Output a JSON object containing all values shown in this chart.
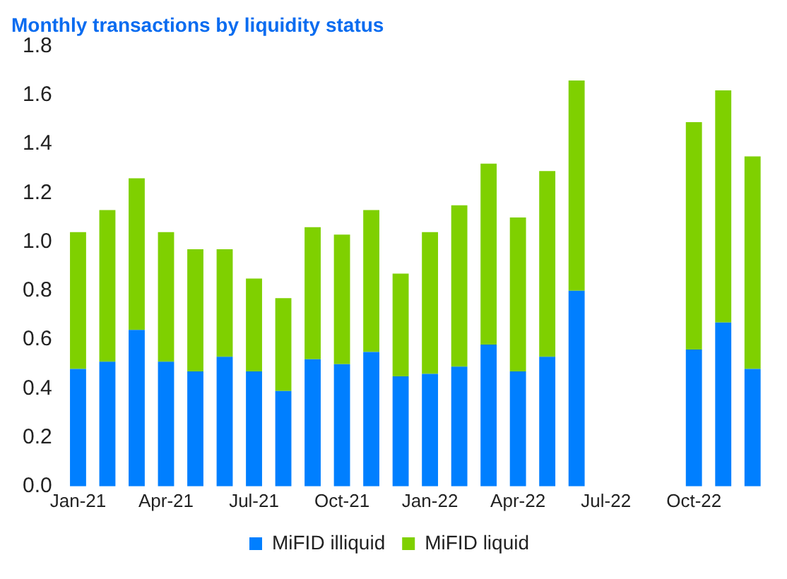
{
  "chart_data": {
    "type": "bar",
    "title": "Monthly transactions by liquidity status",
    "stacked": true,
    "categories": [
      "Jan-21",
      null,
      null,
      "Apr-21",
      null,
      null,
      "Jul-21",
      null,
      null,
      "Oct-21",
      null,
      null,
      "Jan-22",
      null,
      null,
      "Apr-22",
      null,
      null,
      "Jul-22",
      null,
      null,
      "Oct-22",
      null,
      null
    ],
    "series": [
      {
        "name": "MiFID illiquid",
        "color": "#007fff",
        "values": [
          0.48,
          0.51,
          0.64,
          0.51,
          0.47,
          0.53,
          0.47,
          0.39,
          0.52,
          0.5,
          0.55,
          0.45,
          0.46,
          0.49,
          0.58,
          0.47,
          0.53,
          0.8,
          null,
          null,
          null,
          0.56,
          0.67,
          0.48
        ]
      },
      {
        "name": "MiFID liquid",
        "color": "#7fd000",
        "values": [
          0.56,
          0.62,
          0.62,
          0.53,
          0.5,
          0.44,
          0.38,
          0.38,
          0.54,
          0.53,
          0.58,
          0.42,
          0.58,
          0.66,
          0.74,
          0.63,
          0.76,
          0.86,
          null,
          null,
          null,
          0.93,
          0.95,
          0.87
        ]
      }
    ],
    "ylim": [
      0,
      1.8
    ],
    "yticks": [
      {
        "value": 0,
        "label": "0.0"
      },
      0.2,
      0.4,
      0.6,
      0.8,
      {
        "value": 1,
        "label": "1.0"
      },
      1.2,
      1.4,
      1.6,
      1.8
    ],
    "grid": false,
    "legend": "bottom"
  }
}
